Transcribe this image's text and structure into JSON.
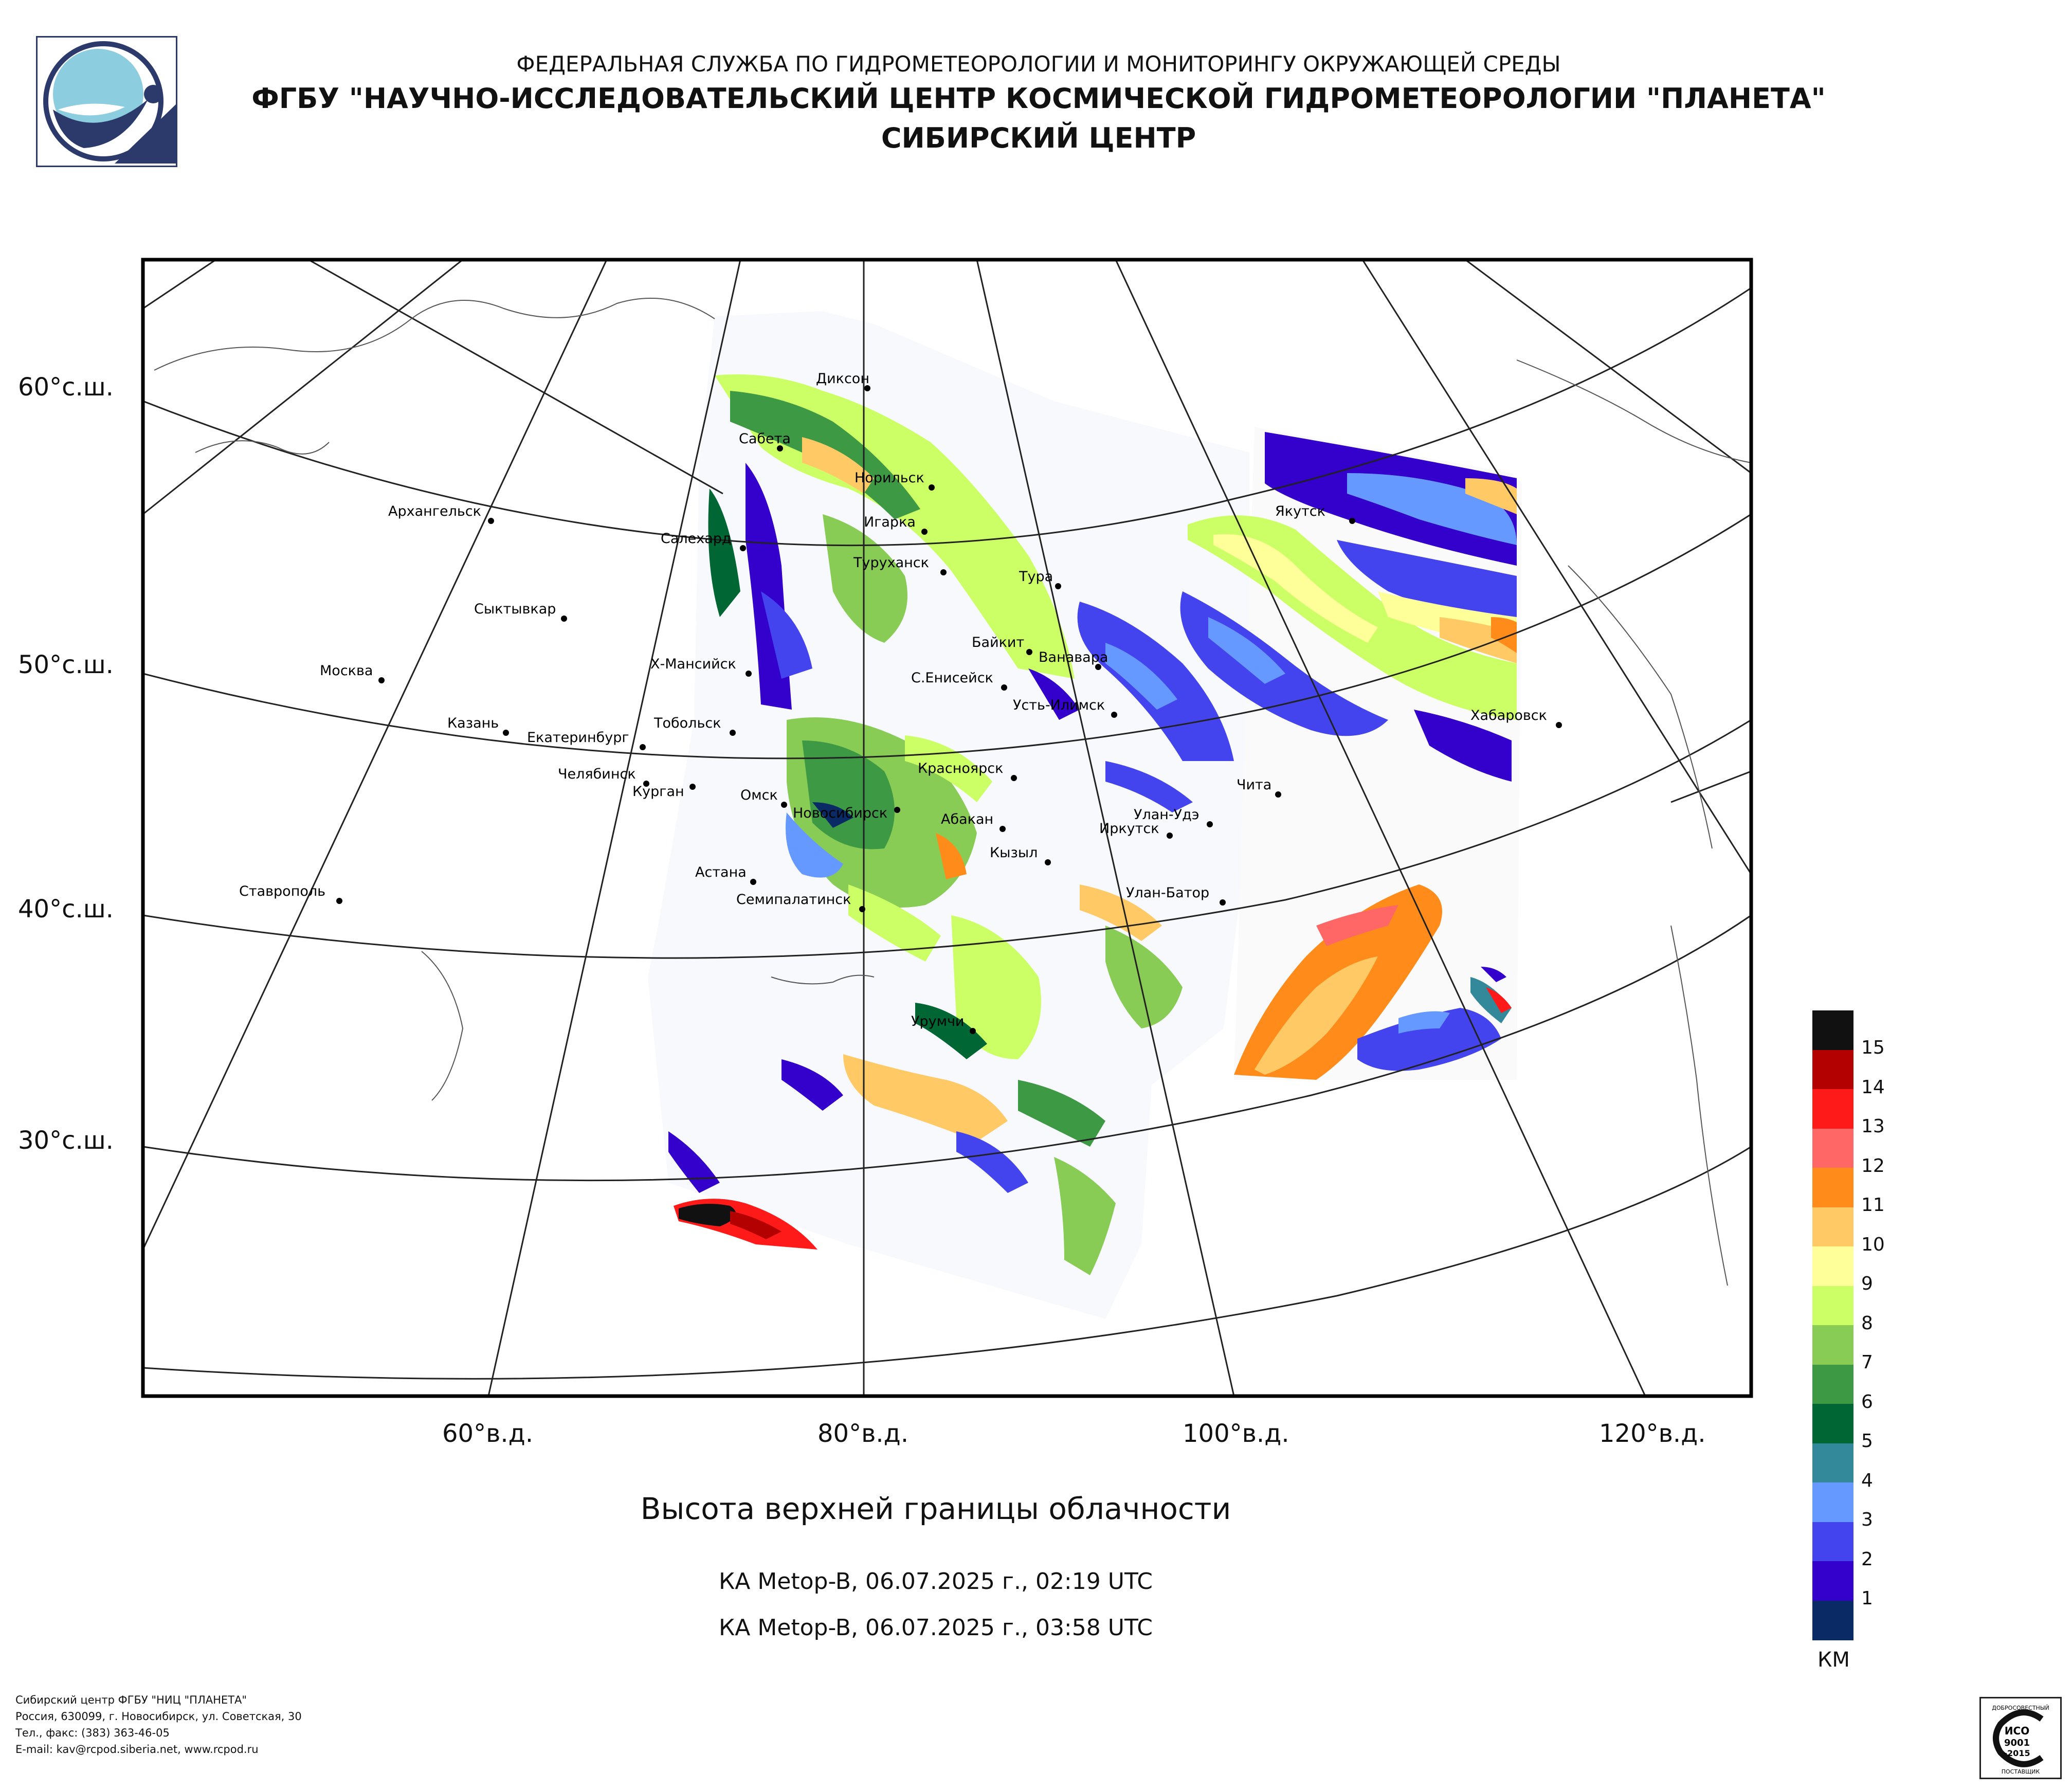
{
  "header": {
    "line1": "ФЕДЕРАЛЬНАЯ СЛУЖБА ПО ГИДРОМЕТЕОРОЛОГИИ И МОНИТОРИНГУ ОКРУЖАЮЩЕЙ СРЕДЫ",
    "line2": "ФГБУ \"НАУЧНО-ИССЛЕДОВАТЕЛЬСКИЙ ЦЕНТР КОСМИЧЕСКОЙ ГИДРОМЕТЕОРОЛОГИИ \"ПЛАНЕТА\"",
    "line3": "СИБИРСКИЙ ЦЕНТР"
  },
  "map": {
    "latitude_labels": [
      "60°с.ш.",
      "50°с.ш.",
      "40°с.ш.",
      "30°с.ш."
    ],
    "longitude_labels": [
      "60°в.д.",
      "80°в.д.",
      "100°в.д.",
      "120°в.д."
    ],
    "cities": [
      {
        "name": "Диксон"
      },
      {
        "name": "Сабета"
      },
      {
        "name": "Норильск"
      },
      {
        "name": "Игарка"
      },
      {
        "name": "Салехард"
      },
      {
        "name": "Туруханск"
      },
      {
        "name": "Тура"
      },
      {
        "name": "Архангельск"
      },
      {
        "name": "Сыктывкар"
      },
      {
        "name": "Якутск"
      },
      {
        "name": "Байкит"
      },
      {
        "name": "Ванавара"
      },
      {
        "name": "Москва"
      },
      {
        "name": "Х-Мансийск"
      },
      {
        "name": "С.Енисейск"
      },
      {
        "name": "Усть-Илимск"
      },
      {
        "name": "Хабаровск"
      },
      {
        "name": "Казань"
      },
      {
        "name": "Тобольск"
      },
      {
        "name": "Екатеринбург"
      },
      {
        "name": "Красноярск"
      },
      {
        "name": "Челябинск"
      },
      {
        "name": "Курган"
      },
      {
        "name": "Чита"
      },
      {
        "name": "Омск"
      },
      {
        "name": "Новосибирск"
      },
      {
        "name": "Абакан"
      },
      {
        "name": "Улан-Удэ"
      },
      {
        "name": "Иркутск"
      },
      {
        "name": "Кызыл"
      },
      {
        "name": "Астана"
      },
      {
        "name": "Ставрополь"
      },
      {
        "name": "Семипалатинск"
      },
      {
        "name": "Улан-Батор"
      },
      {
        "name": "Урумчи"
      }
    ]
  },
  "title": "Высота верхней границы облачности",
  "passes": [
    "КА Metop-B, 06.07.2025 г., 02:19 UTC",
    "КА Metop-B, 06.07.2025 г., 03:58 UTC"
  ],
  "legend": {
    "unit": "КМ",
    "items": [
      {
        "value": "15",
        "color": "#111111"
      },
      {
        "value": "14",
        "color": "#b30000"
      },
      {
        "value": "13",
        "color": "#ff1a1a"
      },
      {
        "value": "12",
        "color": "#ff6666"
      },
      {
        "value": "11",
        "color": "#ff8c1a"
      },
      {
        "value": "10",
        "color": "#ffc966"
      },
      {
        "value": "9",
        "color": "#ffff99"
      },
      {
        "value": "8",
        "color": "#ccff66"
      },
      {
        "value": "7",
        "color": "#88cc55"
      },
      {
        "value": "6",
        "color": "#3d9944"
      },
      {
        "value": "5",
        "color": "#006633"
      },
      {
        "value": "4",
        "color": "#338899"
      },
      {
        "value": "3",
        "color": "#6699ff"
      },
      {
        "value": "2",
        "color": "#4444ee"
      },
      {
        "value": "1",
        "color": "#3300cc"
      },
      {
        "value": "",
        "color": "#0a2a66"
      }
    ]
  },
  "footer": [
    "Сибирский центр ФГБУ \"НИЦ \"ПЛАНЕТА\"",
    "Россия, 630099, г. Новосибирск, ул. Советская, 30",
    "Тел., факс: (383) 363-46-05",
    "E-mail: kav@rcpod.siberia.net, www.rcpod.ru"
  ],
  "certificate": {
    "top_text": "ДОБРОСОВЕСТНЫЙ",
    "line1": "ИСО",
    "line2": "9001",
    "line3": "-2015",
    "bottom_text": "ПОСТАВЩИК"
  }
}
